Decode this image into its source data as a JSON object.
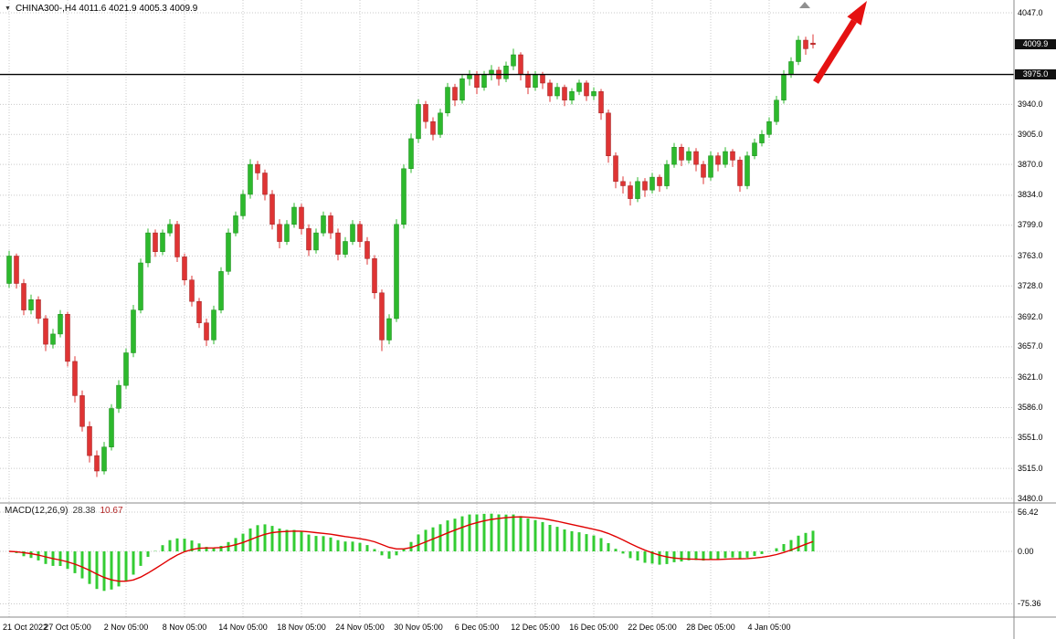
{
  "header": {
    "dropdown_icon": "▼",
    "title": "CHINA300-,H4 4011.6 4021.9 4005.3 4009.9"
  },
  "macd_panel": {
    "label": "MACD(12,26,9)",
    "main_value": "28.38",
    "signal_value": "10.67"
  },
  "chart_data": {
    "type": "candlestick",
    "symbol": "CHINA300-",
    "timeframe": "H4",
    "title": "CHINA300-,H4",
    "last_ohlc": {
      "open": 4011.6,
      "high": 4021.9,
      "low": 4005.3,
      "close": 4009.9
    },
    "horizontal_line": 3975.0,
    "y_axis_ticks": [
      {
        "label": "4047.0",
        "badge": false
      },
      {
        "label": "4009.9",
        "badge": true
      },
      {
        "label": "3975.0",
        "badge": true
      },
      {
        "label": "3940.0",
        "badge": false
      },
      {
        "label": "3905.0",
        "badge": false
      },
      {
        "label": "3870.0",
        "badge": false
      },
      {
        "label": "3834.0",
        "badge": false
      },
      {
        "label": "3799.0",
        "badge": false
      },
      {
        "label": "3763.0",
        "badge": false
      },
      {
        "label": "3728.0",
        "badge": false
      },
      {
        "label": "3692.0",
        "badge": false
      },
      {
        "label": "3657.0",
        "badge": false
      },
      {
        "label": "3621.0",
        "badge": false
      },
      {
        "label": "3586.0",
        "badge": false
      },
      {
        "label": "3551.0",
        "badge": false
      },
      {
        "label": "3515.0",
        "badge": false
      },
      {
        "label": "3480.0",
        "badge": false
      }
    ],
    "x_tick_labels": [
      "21 Oct 2022",
      "27 Oct 05:00",
      "2 Nov 05:00",
      "8 Nov 05:00",
      "14 Nov 05:00",
      "18 Nov 05:00",
      "24 Nov 05:00",
      "30 Nov 05:00",
      "6 Dec 05:00",
      "12 Dec 05:00",
      "16 Dec 05:00",
      "22 Dec 05:00",
      "28 Dec 05:00",
      "4 Jan 05:00"
    ],
    "x_tick_every": 8,
    "macd": {
      "fast": 12,
      "slow": 26,
      "signal_period": 9,
      "last_main": 28.38,
      "last_signal": 10.67,
      "axis_ticks": [
        "56.42",
        "0.00",
        "-75.36"
      ]
    },
    "colors": {
      "up": "#2db92d",
      "up_border": "#178a17",
      "down": "#df3434",
      "down_border": "#9c1f1f",
      "grid": "#c9c9c9",
      "hline": "#000000",
      "macd_hist": "#33cc33",
      "macd_signal": "#e00000",
      "arrow": "#e51212",
      "separator": "#8a8a8a",
      "badge_bg": "#111111"
    },
    "annotations": {
      "arrow": {
        "type": "trend-arrow-up-right",
        "color": "#e51212"
      },
      "shift_marker": {
        "type": "chart-shift-marker",
        "color": "#909090"
      }
    },
    "candles": [
      [
        3731,
        3769,
        3726,
        3763
      ],
      [
        3763,
        3766,
        3725,
        3731
      ],
      [
        3731,
        3736,
        3694,
        3700
      ],
      [
        3700,
        3718,
        3695,
        3712
      ],
      [
        3712,
        3716,
        3684,
        3690
      ],
      [
        3690,
        3694,
        3652,
        3660
      ],
      [
        3660,
        3678,
        3655,
        3672
      ],
      [
        3672,
        3700,
        3668,
        3695
      ],
      [
        3695,
        3698,
        3634,
        3640
      ],
      [
        3640,
        3646,
        3592,
        3600
      ],
      [
        3600,
        3606,
        3558,
        3564
      ],
      [
        3564,
        3570,
        3522,
        3530
      ],
      [
        3530,
        3536,
        3505,
        3512
      ],
      [
        3512,
        3546,
        3508,
        3540
      ],
      [
        3540,
        3590,
        3536,
        3585
      ],
      [
        3585,
        3618,
        3580,
        3612
      ],
      [
        3612,
        3655,
        3608,
        3650
      ],
      [
        3650,
        3706,
        3645,
        3700
      ],
      [
        3700,
        3760,
        3696,
        3755
      ],
      [
        3755,
        3795,
        3750,
        3790
      ],
      [
        3790,
        3794,
        3762,
        3768
      ],
      [
        3768,
        3794,
        3764,
        3790
      ],
      [
        3790,
        3806,
        3786,
        3800
      ],
      [
        3800,
        3804,
        3756,
        3762
      ],
      [
        3762,
        3766,
        3729,
        3735
      ],
      [
        3735,
        3740,
        3704,
        3710
      ],
      [
        3710,
        3714,
        3679,
        3685
      ],
      [
        3685,
        3690,
        3658,
        3665
      ],
      [
        3665,
        3705,
        3660,
        3700
      ],
      [
        3700,
        3750,
        3696,
        3745
      ],
      [
        3745,
        3795,
        3741,
        3790
      ],
      [
        3790,
        3815,
        3786,
        3810
      ],
      [
        3810,
        3840,
        3806,
        3835
      ],
      [
        3835,
        3876,
        3830,
        3870
      ],
      [
        3870,
        3874,
        3852,
        3860
      ],
      [
        3860,
        3864,
        3828,
        3835
      ],
      [
        3835,
        3840,
        3794,
        3800
      ],
      [
        3800,
        3806,
        3772,
        3780
      ],
      [
        3780,
        3805,
        3776,
        3800
      ],
      [
        3800,
        3825,
        3796,
        3820
      ],
      [
        3820,
        3824,
        3788,
        3795
      ],
      [
        3795,
        3800,
        3763,
        3770
      ],
      [
        3770,
        3795,
        3766,
        3790
      ],
      [
        3790,
        3815,
        3786,
        3810
      ],
      [
        3810,
        3814,
        3783,
        3790
      ],
      [
        3790,
        3795,
        3758,
        3765
      ],
      [
        3765,
        3785,
        3761,
        3780
      ],
      [
        3780,
        3805,
        3776,
        3800
      ],
      [
        3800,
        3804,
        3773,
        3780
      ],
      [
        3780,
        3785,
        3753,
        3760
      ],
      [
        3760,
        3764,
        3713,
        3720
      ],
      [
        3720,
        3724,
        3652,
        3665
      ],
      [
        3665,
        3695,
        3660,
        3690
      ],
      [
        3690,
        3806,
        3686,
        3800
      ],
      [
        3800,
        3870,
        3795,
        3865
      ],
      [
        3865,
        3906,
        3860,
        3900
      ],
      [
        3900,
        3946,
        3895,
        3940
      ],
      [
        3940,
        3944,
        3912,
        3920
      ],
      [
        3920,
        3925,
        3898,
        3905
      ],
      [
        3905,
        3935,
        3901,
        3930
      ],
      [
        3930,
        3965,
        3926,
        3960
      ],
      [
        3960,
        3964,
        3938,
        3945
      ],
      [
        3945,
        3975,
        3941,
        3970
      ],
      [
        3970,
        3980,
        3962,
        3975
      ],
      [
        3975,
        3979,
        3952,
        3960
      ],
      [
        3960,
        3979,
        3956,
        3975
      ],
      [
        3975,
        3986,
        3968,
        3980
      ],
      [
        3980,
        3984,
        3962,
        3970
      ],
      [
        3970,
        3990,
        3966,
        3985
      ],
      [
        3985,
        4005,
        3980,
        3998
      ],
      [
        3998,
        4001,
        3968,
        3975
      ],
      [
        3975,
        3979,
        3952,
        3960
      ],
      [
        3960,
        3979,
        3956,
        3975
      ],
      [
        3975,
        3978,
        3958,
        3965
      ],
      [
        3965,
        3969,
        3943,
        3950
      ],
      [
        3950,
        3965,
        3946,
        3960
      ],
      [
        3960,
        3963,
        3938,
        3945
      ],
      [
        3945,
        3959,
        3940,
        3955
      ],
      [
        3955,
        3969,
        3951,
        3965
      ],
      [
        3965,
        3968,
        3944,
        3950
      ],
      [
        3950,
        3960,
        3945,
        3955
      ],
      [
        3955,
        3958,
        3922,
        3930
      ],
      [
        3930,
        3934,
        3872,
        3880
      ],
      [
        3880,
        3884,
        3842,
        3850
      ],
      [
        3850,
        3856,
        3836,
        3845
      ],
      [
        3845,
        3850,
        3822,
        3830
      ],
      [
        3830,
        3855,
        3826,
        3850
      ],
      [
        3850,
        3854,
        3832,
        3840
      ],
      [
        3840,
        3860,
        3836,
        3855
      ],
      [
        3855,
        3858,
        3838,
        3845
      ],
      [
        3845,
        3875,
        3841,
        3870
      ],
      [
        3870,
        3895,
        3866,
        3890
      ],
      [
        3890,
        3894,
        3868,
        3875
      ],
      [
        3875,
        3890,
        3871,
        3885
      ],
      [
        3885,
        3889,
        3862,
        3870
      ],
      [
        3870,
        3874,
        3847,
        3855
      ],
      [
        3855,
        3885,
        3851,
        3880
      ],
      [
        3880,
        3884,
        3862,
        3870
      ],
      [
        3870,
        3890,
        3866,
        3885
      ],
      [
        3885,
        3888,
        3867,
        3875
      ],
      [
        3875,
        3879,
        3838,
        3845
      ],
      [
        3845,
        3885,
        3841,
        3880
      ],
      [
        3880,
        3900,
        3876,
        3895
      ],
      [
        3895,
        3910,
        3891,
        3905
      ],
      [
        3905,
        3925,
        3901,
        3920
      ],
      [
        3920,
        3950,
        3916,
        3945
      ],
      [
        3945,
        3980,
        3941,
        3975
      ],
      [
        3975,
        3995,
        3971,
        3990
      ],
      [
        3990,
        4020,
        3986,
        4015
      ],
      [
        4015,
        4019,
        3998,
        4005
      ],
      [
        4011.6,
        4021.9,
        4005.3,
        4009.9
      ]
    ]
  }
}
